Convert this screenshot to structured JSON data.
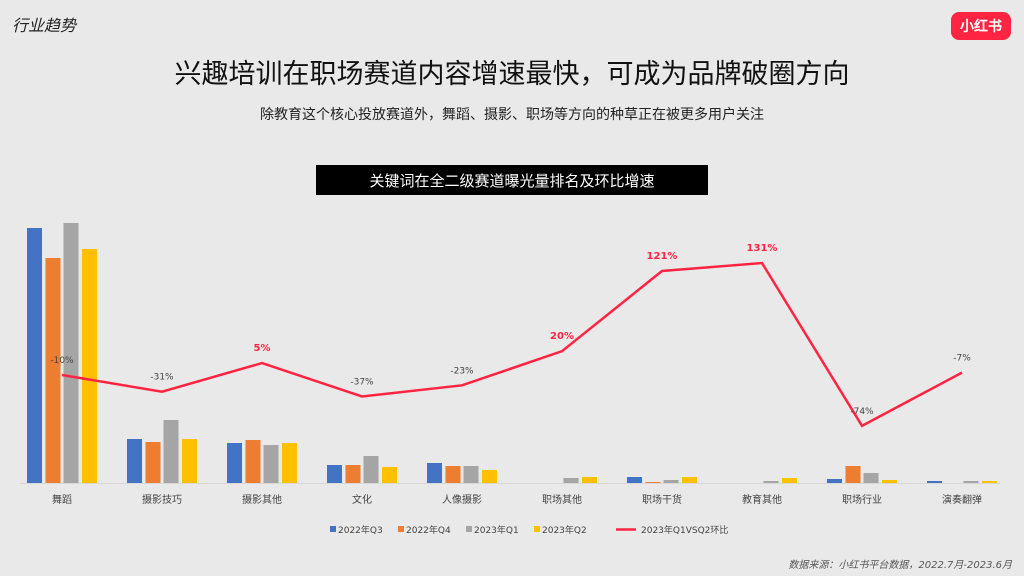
{
  "header": {
    "section": "行业趋势",
    "logo": "小红书",
    "title": "兴趣培训在职场赛道内容增速最快，可成为品牌破圈方向",
    "subtitle": "除教育这个核心投放赛道外，舞蹈、摄影、职场等方向的种草正在被更多用户关注"
  },
  "footer": {
    "source": "数据来源：小红书平台数据，2022.7月-2023.6月"
  },
  "chart_data": {
    "type": "bar+line",
    "title": "关键词在全二级赛道曝光量排名及环比增速",
    "categories": [
      "舞蹈",
      "摄影技巧",
      "摄影其他",
      "文化",
      "人像摄影",
      "职场其他",
      "职场干货",
      "教育其他",
      "职场行业",
      "演奏翻弹"
    ],
    "series": [
      {
        "name": "2022年Q3",
        "type": "bar",
        "color": "#4472c4",
        "values": [
          255,
          44,
          40,
          18,
          20,
          0,
          6,
          0,
          4,
          2
        ]
      },
      {
        "name": "2022年Q4",
        "type": "bar",
        "color": "#ed7d31",
        "values": [
          225,
          41,
          43,
          18,
          17,
          0,
          1,
          0,
          17,
          0
        ]
      },
      {
        "name": "2023年Q1",
        "type": "bar",
        "color": "#a5a5a5",
        "values": [
          260,
          63,
          38,
          27,
          17,
          5,
          3,
          2,
          10,
          2
        ]
      },
      {
        "name": "2023年Q2",
        "type": "bar",
        "color": "#ffc000",
        "values": [
          234,
          44,
          40,
          16,
          13,
          6,
          6,
          5,
          3,
          2
        ]
      },
      {
        "name": "2023年Q1VSQ2环比",
        "type": "line",
        "color": "#ff2442",
        "values": [
          -10,
          -31,
          5,
          -37,
          -23,
          20,
          121,
          131,
          -74,
          -7
        ],
        "labels": [
          "-10%",
          "-31%",
          "5%",
          "-37%",
          "-23%",
          "20%",
          "121%",
          "131%",
          "-74%",
          "-7%"
        ]
      }
    ],
    "axes_visible": false,
    "grid": false,
    "legend": "bottom"
  }
}
